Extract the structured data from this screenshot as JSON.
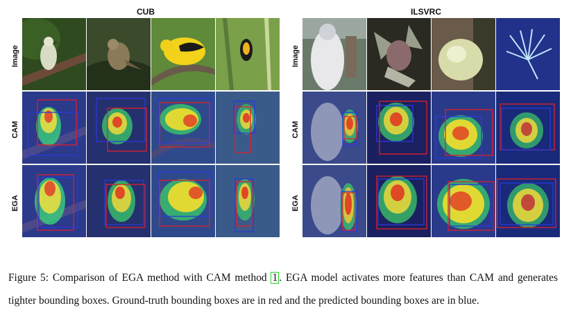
{
  "panels": [
    {
      "title": "CUB",
      "rows": [
        "Image",
        "CAM",
        "EGA"
      ]
    },
    {
      "title": "ILSVRC",
      "rows": [
        "Image",
        "CAM",
        "EGA"
      ]
    }
  ],
  "colors": {
    "ground_truth_box": "#e0202a",
    "predicted_box": "#2a3ad8"
  },
  "caption": {
    "before_cite": "Figure 5: Comparison of EGA method with CAM method ",
    "cite": "1",
    "after_cite": ". EGA model activates more features than CAM and generates tighter bounding boxes. Ground-truth bounding boxes are in red and the predicted bounding boxes are in blue."
  }
}
